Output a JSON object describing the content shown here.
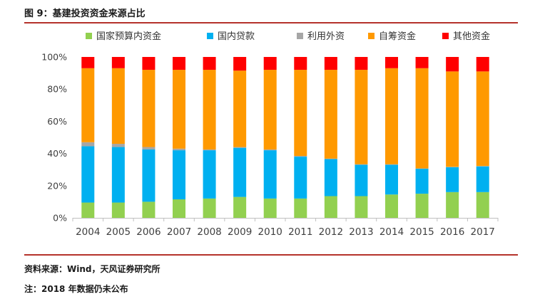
{
  "header": {
    "title": "图 9：基建投资资金来源占比"
  },
  "footer": {
    "source": "资料来源：Wind，天风证券研究所",
    "note": "注：2018 年数据仍未公布"
  },
  "colors": {
    "budget": "#92d050",
    "loan": "#00b0f0",
    "foreign": "#a6a6a6",
    "selfraised": "#ff9900",
    "other": "#ff0000",
    "rule": "#b5322b",
    "axis": "#bfbfbf"
  },
  "chart_data": {
    "type": "bar",
    "stacked": true,
    "title": "",
    "xlabel": "",
    "ylabel": "",
    "ylim": [
      0,
      100
    ],
    "yticks": [
      "0%",
      "20%",
      "40%",
      "60%",
      "80%",
      "100%"
    ],
    "legend_position": "top",
    "categories": [
      "2004",
      "2005",
      "2006",
      "2007",
      "2008",
      "2009",
      "2010",
      "2011",
      "2012",
      "2013",
      "2014",
      "2015",
      "2016",
      "2017"
    ],
    "series": [
      {
        "name": "国家预算内资金",
        "color_key": "budget",
        "values": [
          9.5,
          9.5,
          10,
          11.5,
          12,
          13,
          12,
          12,
          13.5,
          13.5,
          14.5,
          15,
          16,
          16
        ]
      },
      {
        "name": "国内贷款",
        "color_key": "loan",
        "values": [
          35,
          34.5,
          32.5,
          30.5,
          30,
          30.5,
          30,
          26,
          23,
          19.5,
          18.5,
          15.5,
          15.5,
          16
        ]
      },
      {
        "name": "利用外资",
        "color_key": "foreign",
        "values": [
          2.5,
          2,
          1.5,
          1,
          0.5,
          0.5,
          0.5,
          0.5,
          0.3,
          0.3,
          0.3,
          0.2,
          0.2,
          0.2
        ]
      },
      {
        "name": "自筹资金",
        "color_key": "selfraised",
        "values": [
          46,
          47,
          48,
          49,
          49.5,
          47.5,
          49.5,
          53.5,
          55.2,
          58.7,
          59.7,
          62.3,
          59.3,
          58.8
        ]
      },
      {
        "name": "其他资金",
        "color_key": "other",
        "values": [
          7,
          7,
          8,
          8,
          8,
          8.5,
          8,
          8,
          8,
          8,
          7,
          7,
          9,
          9
        ]
      }
    ]
  }
}
